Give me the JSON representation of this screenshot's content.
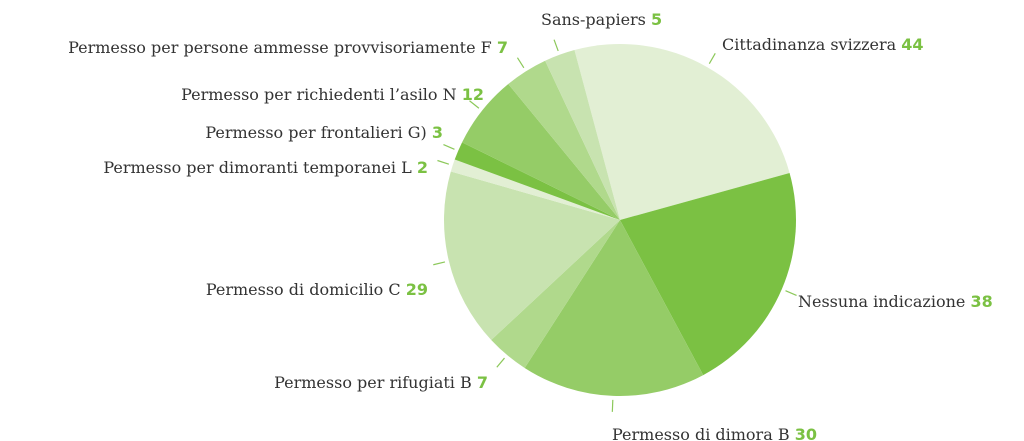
{
  "chart_data": {
    "type": "pie",
    "categories": [
      "Cittadinanza svizzera",
      "Nessuna indicazione",
      "Permesso di dimora B",
      "Permesso per rifugiati B",
      "Permesso di domicilio C",
      "Permesso per dimoranti temporanei L",
      "Permesso per frontalieri G)",
      "Permesso per richiedenti l’asilo N",
      "Permesso per persone ammesse provvisoriamente F",
      "Sans-papiers"
    ],
    "values": [
      44,
      38,
      30,
      7,
      29,
      2,
      3,
      12,
      7,
      5
    ],
    "colors": [
      "#e2efd4",
      "#7bc143",
      "#95cc67",
      "#b0d98c",
      "#c8e3b0",
      "#e2efd4",
      "#7bc143",
      "#95cc67",
      "#b0d98c",
      "#c8e3b0"
    ]
  }
}
